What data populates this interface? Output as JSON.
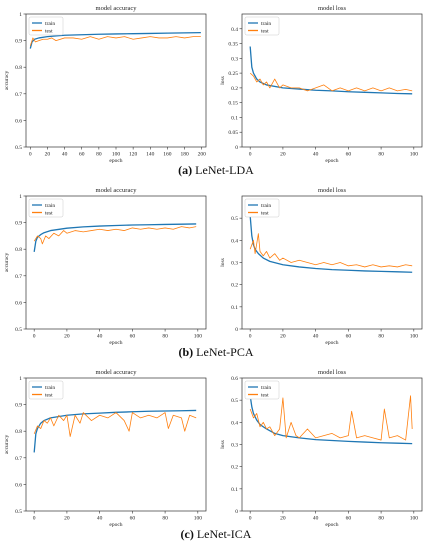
{
  "colors": {
    "train": "#1f77b4",
    "test": "#ff7f0e"
  },
  "captions": [
    {
      "label": "(a)",
      "text": "LeNet-LDA"
    },
    {
      "label": "(b)",
      "text": "LeNet-PCA"
    },
    {
      "label": "(c)",
      "text": "LeNet-ICA"
    }
  ],
  "chart_data": [
    {
      "type": "line",
      "title": "model accuracy",
      "xlabel": "epoch",
      "ylabel": "accuracy",
      "xlim": [
        -5,
        205
      ],
      "ylim": [
        0.5,
        1.0
      ],
      "xticks": [
        0,
        20,
        40,
        60,
        80,
        100,
        120,
        140,
        160,
        180,
        200
      ],
      "yticks": [
        0.5,
        0.6,
        0.7,
        0.8,
        0.9,
        1.0
      ],
      "legend": "top-left",
      "series": [
        {
          "name": "train",
          "x": [
            0,
            2,
            5,
            10,
            20,
            40,
            60,
            80,
            100,
            120,
            140,
            160,
            180,
            199
          ],
          "values": [
            0.87,
            0.895,
            0.905,
            0.91,
            0.915,
            0.92,
            0.922,
            0.924,
            0.925,
            0.926,
            0.927,
            0.928,
            0.929,
            0.93
          ]
        },
        {
          "name": "test",
          "x": [
            0,
            3,
            6,
            10,
            15,
            20,
            25,
            30,
            40,
            50,
            60,
            70,
            80,
            90,
            100,
            110,
            120,
            130,
            140,
            150,
            160,
            170,
            180,
            190,
            199
          ],
          "values": [
            0.88,
            0.91,
            0.895,
            0.9,
            0.905,
            0.905,
            0.91,
            0.9,
            0.91,
            0.91,
            0.905,
            0.915,
            0.905,
            0.915,
            0.91,
            0.915,
            0.905,
            0.91,
            0.915,
            0.91,
            0.91,
            0.915,
            0.91,
            0.915,
            0.915
          ]
        }
      ]
    },
    {
      "type": "line",
      "title": "model loss",
      "xlabel": "epoch",
      "ylabel": "loss",
      "xlim": [
        -5,
        105
      ],
      "ylim": [
        0.0,
        0.45
      ],
      "xticks": [
        0,
        20,
        40,
        60,
        80,
        100
      ],
      "yticks": [
        0.0,
        0.05,
        0.1,
        0.15,
        0.2,
        0.25,
        0.3,
        0.35,
        0.4
      ],
      "legend": "top-left",
      "series": [
        {
          "name": "train",
          "x": [
            0,
            1,
            2,
            4,
            6,
            10,
            20,
            30,
            40,
            50,
            60,
            70,
            80,
            90,
            99
          ],
          "values": [
            0.34,
            0.27,
            0.25,
            0.23,
            0.22,
            0.21,
            0.2,
            0.196,
            0.192,
            0.19,
            0.187,
            0.185,
            0.183,
            0.181,
            0.18
          ]
        },
        {
          "name": "test",
          "x": [
            0,
            2,
            4,
            6,
            8,
            10,
            12,
            15,
            18,
            20,
            25,
            30,
            35,
            40,
            45,
            50,
            55,
            60,
            65,
            70,
            75,
            80,
            85,
            90,
            95,
            99
          ],
          "values": [
            0.25,
            0.24,
            0.22,
            0.23,
            0.21,
            0.22,
            0.2,
            0.23,
            0.2,
            0.21,
            0.2,
            0.2,
            0.19,
            0.2,
            0.21,
            0.19,
            0.2,
            0.19,
            0.2,
            0.19,
            0.2,
            0.19,
            0.2,
            0.19,
            0.195,
            0.19
          ]
        }
      ]
    },
    {
      "type": "line",
      "title": "model accuracy",
      "xlabel": "epoch",
      "ylabel": "accuracy",
      "xlim": [
        -5,
        105
      ],
      "ylim": [
        0.5,
        1.0
      ],
      "xticks": [
        0,
        20,
        40,
        60,
        80,
        100
      ],
      "yticks": [
        0.5,
        0.6,
        0.7,
        0.8,
        0.9,
        1.0
      ],
      "legend": "top-left",
      "series": [
        {
          "name": "train",
          "x": [
            0,
            1,
            2,
            4,
            6,
            10,
            20,
            30,
            40,
            50,
            60,
            70,
            80,
            90,
            99
          ],
          "values": [
            0.79,
            0.83,
            0.845,
            0.855,
            0.862,
            0.87,
            0.879,
            0.884,
            0.887,
            0.889,
            0.891,
            0.892,
            0.893,
            0.894,
            0.895
          ]
        },
        {
          "name": "test",
          "x": [
            0,
            2,
            4,
            5,
            7,
            9,
            12,
            15,
            18,
            20,
            25,
            30,
            35,
            40,
            45,
            50,
            55,
            60,
            65,
            70,
            75,
            80,
            85,
            90,
            95,
            99
          ],
          "values": [
            0.83,
            0.85,
            0.84,
            0.82,
            0.85,
            0.84,
            0.86,
            0.85,
            0.87,
            0.86,
            0.87,
            0.865,
            0.87,
            0.875,
            0.87,
            0.875,
            0.87,
            0.88,
            0.875,
            0.88,
            0.875,
            0.88,
            0.875,
            0.885,
            0.88,
            0.885
          ]
        }
      ]
    },
    {
      "type": "line",
      "title": "model loss",
      "xlabel": "epoch",
      "ylabel": "loss",
      "xlim": [
        -5,
        105
      ],
      "ylim": [
        0.0,
        0.6
      ],
      "xticks": [
        0,
        20,
        40,
        60,
        80,
        100
      ],
      "yticks": [
        0.0,
        0.1,
        0.2,
        0.3,
        0.4,
        0.5
      ],
      "legend": "top-left",
      "series": [
        {
          "name": "train",
          "x": [
            0,
            1,
            2,
            3,
            5,
            8,
            12,
            20,
            30,
            40,
            50,
            60,
            70,
            80,
            90,
            99
          ],
          "values": [
            0.51,
            0.42,
            0.38,
            0.36,
            0.34,
            0.32,
            0.305,
            0.29,
            0.28,
            0.273,
            0.268,
            0.265,
            0.262,
            0.26,
            0.258,
            0.256
          ]
        },
        {
          "name": "test",
          "x": [
            0,
            2,
            3,
            5,
            6,
            8,
            10,
            12,
            15,
            18,
            20,
            25,
            30,
            35,
            40,
            45,
            50,
            55,
            60,
            65,
            70,
            75,
            80,
            85,
            90,
            95,
            99
          ],
          "values": [
            0.36,
            0.4,
            0.34,
            0.43,
            0.35,
            0.33,
            0.35,
            0.32,
            0.34,
            0.31,
            0.32,
            0.3,
            0.31,
            0.3,
            0.29,
            0.3,
            0.29,
            0.3,
            0.285,
            0.29,
            0.28,
            0.29,
            0.28,
            0.285,
            0.28,
            0.29,
            0.285
          ]
        }
      ]
    },
    {
      "type": "line",
      "title": "model accuracy",
      "xlabel": "epoch",
      "ylabel": "accuracy",
      "xlim": [
        -5,
        105
      ],
      "ylim": [
        0.5,
        1.0
      ],
      "xticks": [
        0,
        20,
        40,
        60,
        80,
        100
      ],
      "yticks": [
        0.5,
        0.6,
        0.7,
        0.8,
        0.9,
        1.0
      ],
      "legend": "top-left",
      "series": [
        {
          "name": "train",
          "x": [
            0,
            1,
            2,
            4,
            6,
            10,
            20,
            30,
            40,
            50,
            60,
            70,
            80,
            90,
            99
          ],
          "values": [
            0.72,
            0.79,
            0.81,
            0.83,
            0.84,
            0.85,
            0.86,
            0.865,
            0.868,
            0.871,
            0.873,
            0.875,
            0.876,
            0.877,
            0.878
          ]
        },
        {
          "name": "test",
          "x": [
            0,
            2,
            4,
            6,
            8,
            10,
            12,
            15,
            18,
            20,
            22,
            25,
            28,
            30,
            35,
            40,
            45,
            50,
            55,
            58,
            60,
            65,
            70,
            75,
            80,
            82,
            85,
            90,
            92,
            95,
            99
          ],
          "values": [
            0.79,
            0.82,
            0.81,
            0.84,
            0.83,
            0.85,
            0.82,
            0.86,
            0.84,
            0.86,
            0.78,
            0.86,
            0.83,
            0.87,
            0.84,
            0.86,
            0.85,
            0.87,
            0.84,
            0.8,
            0.87,
            0.85,
            0.86,
            0.85,
            0.87,
            0.81,
            0.86,
            0.85,
            0.8,
            0.86,
            0.85
          ]
        }
      ]
    },
    {
      "type": "line",
      "title": "model loss",
      "xlabel": "epoch",
      "ylabel": "loss",
      "xlim": [
        -5,
        105
      ],
      "ylim": [
        0.0,
        0.6
      ],
      "xticks": [
        0,
        20,
        40,
        60,
        80,
        100
      ],
      "yticks": [
        0.0,
        0.1,
        0.2,
        0.3,
        0.4,
        0.5,
        0.6
      ],
      "legend": "top-left",
      "series": [
        {
          "name": "train",
          "x": [
            0,
            1,
            2,
            4,
            6,
            10,
            15,
            20,
            30,
            40,
            50,
            60,
            70,
            80,
            90,
            99
          ],
          "values": [
            0.52,
            0.47,
            0.44,
            0.41,
            0.39,
            0.37,
            0.35,
            0.34,
            0.33,
            0.322,
            0.318,
            0.314,
            0.311,
            0.308,
            0.306,
            0.304
          ]
        },
        {
          "name": "test",
          "x": [
            0,
            2,
            4,
            6,
            8,
            10,
            12,
            15,
            18,
            20,
            22,
            25,
            28,
            30,
            35,
            40,
            45,
            50,
            55,
            60,
            62,
            65,
            70,
            75,
            80,
            82,
            85,
            90,
            95,
            98,
            99
          ],
          "values": [
            0.46,
            0.42,
            0.44,
            0.38,
            0.4,
            0.37,
            0.38,
            0.34,
            0.37,
            0.51,
            0.33,
            0.4,
            0.34,
            0.33,
            0.37,
            0.33,
            0.34,
            0.35,
            0.33,
            0.34,
            0.45,
            0.33,
            0.34,
            0.33,
            0.32,
            0.46,
            0.33,
            0.34,
            0.32,
            0.52,
            0.37
          ]
        }
      ]
    }
  ]
}
